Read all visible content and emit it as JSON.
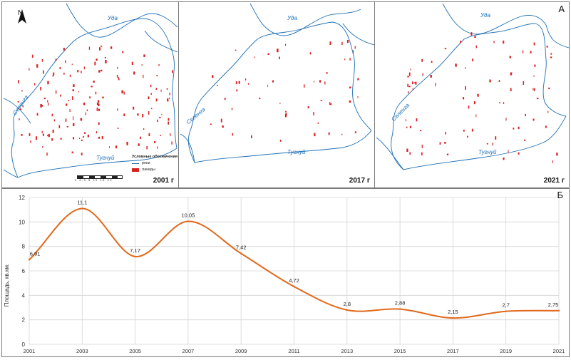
{
  "panel_a": {
    "letter": "А",
    "maps": [
      {
        "year_label": "2001 г",
        "patch_count": 150
      },
      {
        "year_label": "2017 г",
        "patch_count": 55
      },
      {
        "year_label": "2021 г",
        "patch_count": 85
      }
    ],
    "north_label": "N",
    "rivers": {
      "uda": "Уда",
      "selenga": "Селенга",
      "tugnui": "Тугнуй"
    },
    "legend": {
      "title": "Условные обозначения",
      "river": "реки",
      "lakes": "лакеды"
    },
    "scale_text": "0 2,5 5 10 15 20",
    "colors": {
      "river": "#1d6fb5",
      "water_patch": "#d92020",
      "frame": "#7a7a7a"
    }
  },
  "panel_b": {
    "letter": "Б"
  },
  "chart_data": {
    "type": "line",
    "title": "",
    "xlabel": "",
    "ylabel": "Площадь, кв.км.",
    "x": [
      2001,
      2003,
      2005,
      2007,
      2009,
      2011,
      2013,
      2015,
      2017,
      2019,
      2021
    ],
    "values": [
      6.91,
      11.1,
      7.17,
      10.05,
      7.42,
      4.72,
      2.8,
      2.88,
      2.15,
      2.7,
      2.75
    ],
    "data_labels": [
      "6,91",
      "11,1",
      "7,17",
      "10,05",
      "7,42",
      "4,72",
      "2,8",
      "2,88",
      "2,15",
      "2,7",
      "2,75"
    ],
    "x_ticks": [
      "2001",
      "2003",
      "2005",
      "2007",
      "2009",
      "2011",
      "2013",
      "2015",
      "2017",
      "2019",
      "2021"
    ],
    "y_ticks": [
      "0",
      "2",
      "4",
      "6",
      "8",
      "10",
      "12"
    ],
    "ylim": [
      0,
      12
    ],
    "xlim": [
      2001,
      2021
    ],
    "grid": true,
    "line_color": "#e0691c",
    "grid_color": "#d4d4d4"
  }
}
